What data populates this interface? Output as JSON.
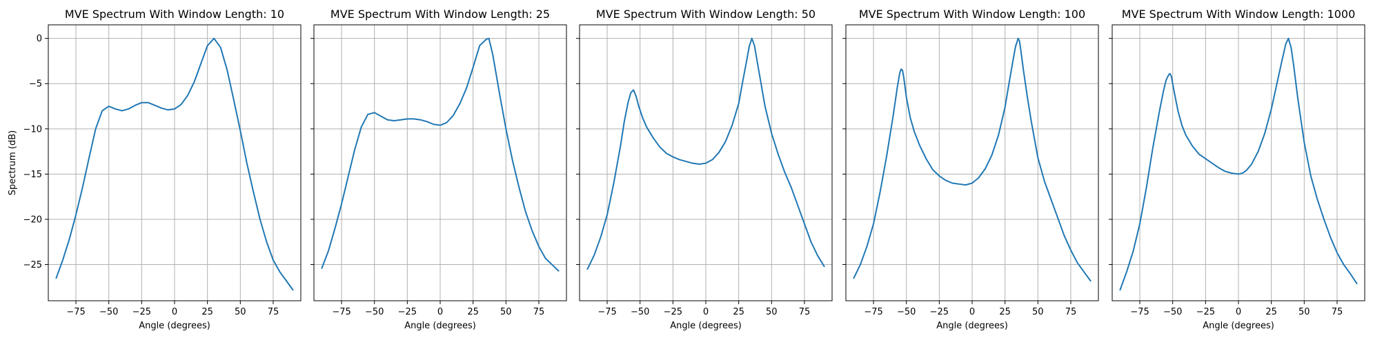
{
  "chart_data": [
    {
      "type": "line",
      "title": "MVE Spectrum With Window Length: 10",
      "xlabel": "Angle (degrees)",
      "ylabel": "Spectrum (dB)",
      "xlim": [
        -96,
        96
      ],
      "ylim": [
        -29,
        1.5
      ],
      "xticks": [
        -75,
        -50,
        -25,
        0,
        25,
        50,
        75
      ],
      "yticks": [
        0,
        -5,
        -10,
        -15,
        -20,
        -25
      ],
      "grid": true,
      "color": "#1f77b4",
      "series": [
        {
          "x": [
            -90,
            -85,
            -80,
            -75,
            -70,
            -65,
            -60,
            -55,
            -50,
            -45,
            -40,
            -35,
            -30,
            -25,
            -20,
            -15,
            -10,
            -5,
            0,
            5,
            10,
            15,
            20,
            25,
            30,
            35,
            40,
            45,
            50,
            55,
            60,
            65,
            70,
            75,
            80,
            85,
            90
          ],
          "y": [
            -26.5,
            -24.5,
            -22.2,
            -19.5,
            -16.5,
            -13.2,
            -10.0,
            -8.0,
            -7.5,
            -7.8,
            -8.0,
            -7.8,
            -7.4,
            -7.1,
            -7.1,
            -7.4,
            -7.7,
            -7.9,
            -7.8,
            -7.3,
            -6.3,
            -4.8,
            -2.8,
            -0.8,
            0.0,
            -1.0,
            -3.5,
            -6.8,
            -10.2,
            -13.8,
            -17.0,
            -20.0,
            -22.5,
            -24.5,
            -25.8,
            -26.8,
            -27.8
          ]
        }
      ]
    },
    {
      "type": "line",
      "title": "MVE Spectrum With Window Length: 25",
      "xlabel": "Angle (degrees)",
      "ylabel": "",
      "xlim": [
        -96,
        96
      ],
      "ylim": [
        -29,
        1.5
      ],
      "xticks": [
        -75,
        -50,
        -25,
        0,
        25,
        50,
        75
      ],
      "yticks": [
        0,
        -5,
        -10,
        -15,
        -20,
        -25
      ],
      "grid": true,
      "color": "#1f77b4",
      "series": [
        {
          "x": [
            -90,
            -85,
            -80,
            -75,
            -70,
            -65,
            -60,
            -55,
            -50,
            -45,
            -40,
            -35,
            -30,
            -25,
            -20,
            -15,
            -10,
            -5,
            0,
            5,
            10,
            15,
            20,
            25,
            30,
            35,
            37,
            40,
            45,
            50,
            55,
            60,
            65,
            70,
            75,
            80,
            85,
            90
          ],
          "y": [
            -25.4,
            -23.5,
            -21.0,
            -18.3,
            -15.3,
            -12.3,
            -9.8,
            -8.4,
            -8.2,
            -8.6,
            -9.0,
            -9.1,
            -9.0,
            -8.9,
            -8.9,
            -9.0,
            -9.2,
            -9.5,
            -9.6,
            -9.3,
            -8.5,
            -7.2,
            -5.5,
            -3.2,
            -0.8,
            -0.1,
            0.0,
            -1.8,
            -6.0,
            -10.0,
            -13.5,
            -16.5,
            -19.2,
            -21.3,
            -23.0,
            -24.3,
            -25.0,
            -25.7
          ]
        }
      ]
    },
    {
      "type": "line",
      "title": "MVE Spectrum With Window Length: 50",
      "xlabel": "Angle (degrees)",
      "ylabel": "",
      "xlim": [
        -96,
        96
      ],
      "ylim": [
        -29,
        1.5
      ],
      "xticks": [
        -75,
        -50,
        -25,
        0,
        25,
        50,
        75
      ],
      "yticks": [
        0,
        -5,
        -10,
        -15,
        -20,
        -25
      ],
      "grid": true,
      "color": "#1f77b4",
      "series": [
        {
          "x": [
            -90,
            -85,
            -80,
            -75,
            -70,
            -65,
            -62,
            -59,
            -57,
            -55,
            -53,
            -51,
            -48,
            -45,
            -40,
            -35,
            -30,
            -25,
            -20,
            -15,
            -10,
            -5,
            0,
            5,
            10,
            15,
            20,
            25,
            28,
            31,
            33,
            35,
            37,
            39,
            42,
            45,
            50,
            55,
            60,
            65,
            70,
            75,
            80,
            85,
            90
          ],
          "y": [
            -25.5,
            -24.0,
            -22.0,
            -19.5,
            -16.0,
            -12.0,
            -9.2,
            -7.0,
            -6.0,
            -5.7,
            -6.4,
            -7.5,
            -8.8,
            -9.8,
            -11.0,
            -12.0,
            -12.7,
            -13.1,
            -13.4,
            -13.6,
            -13.8,
            -13.9,
            -13.8,
            -13.4,
            -12.6,
            -11.4,
            -9.6,
            -7.2,
            -4.8,
            -2.5,
            -0.9,
            0.0,
            -0.8,
            -2.5,
            -5.0,
            -7.5,
            -10.5,
            -12.8,
            -14.8,
            -16.5,
            -18.5,
            -20.5,
            -22.5,
            -24.0,
            -25.2
          ]
        }
      ]
    },
    {
      "type": "line",
      "title": "MVE Spectrum With Window Length: 100",
      "xlabel": "Angle (degrees)",
      "ylabel": "",
      "xlim": [
        -96,
        96
      ],
      "ylim": [
        -29,
        1.5
      ],
      "xticks": [
        -75,
        -50,
        -25,
        0,
        25,
        50,
        75
      ],
      "yticks": [
        0,
        -5,
        -10,
        -15,
        -20,
        -25
      ],
      "grid": true,
      "color": "#1f77b4",
      "series": [
        {
          "x": [
            -90,
            -85,
            -80,
            -75,
            -70,
            -65,
            -60,
            -57,
            -55,
            -54,
            -53,
            -52,
            -50,
            -47,
            -44,
            -40,
            -35,
            -30,
            -25,
            -20,
            -15,
            -10,
            -5,
            0,
            5,
            10,
            15,
            20,
            25,
            28,
            31,
            33,
            35,
            36,
            37,
            39,
            42,
            45,
            50,
            55,
            60,
            65,
            70,
            75,
            80,
            85,
            90
          ],
          "y": [
            -26.5,
            -25.0,
            -23.0,
            -20.5,
            -17.0,
            -13.0,
            -8.5,
            -5.5,
            -3.8,
            -3.4,
            -3.5,
            -4.3,
            -6.5,
            -8.8,
            -10.3,
            -11.8,
            -13.3,
            -14.5,
            -15.2,
            -15.7,
            -16.0,
            -16.1,
            -16.2,
            -16.0,
            -15.4,
            -14.4,
            -12.9,
            -10.7,
            -7.6,
            -5.0,
            -2.5,
            -0.9,
            0.0,
            -0.3,
            -1.3,
            -3.5,
            -6.5,
            -9.2,
            -13.2,
            -15.8,
            -17.8,
            -19.8,
            -21.8,
            -23.4,
            -24.8,
            -25.8,
            -26.8
          ]
        }
      ]
    },
    {
      "type": "line",
      "title": "MVE Spectrum With Window Length: 1000",
      "xlabel": "Angle (degrees)",
      "ylabel": "",
      "xlim": [
        -96,
        96
      ],
      "ylim": [
        -29,
        1.5
      ],
      "xticks": [
        -75,
        -50,
        -25,
        0,
        25,
        50,
        75
      ],
      "yticks": [
        0,
        -5,
        -10,
        -15,
        -20,
        -25
      ],
      "grid": true,
      "color": "#1f77b4",
      "series": [
        {
          "x": [
            -90,
            -85,
            -80,
            -75,
            -70,
            -65,
            -60,
            -57,
            -55,
            -53,
            -52,
            -51,
            -49,
            -46,
            -43,
            -40,
            -35,
            -30,
            -25,
            -20,
            -15,
            -10,
            -5,
            0,
            3,
            6,
            10,
            15,
            20,
            25,
            30,
            33,
            36,
            38,
            40,
            42,
            45,
            48,
            50,
            55,
            60,
            65,
            70,
            75,
            80,
            85,
            90
          ],
          "y": [
            -27.8,
            -25.8,
            -23.5,
            -20.5,
            -16.5,
            -12.0,
            -8.0,
            -5.8,
            -4.6,
            -4.0,
            -3.9,
            -4.2,
            -5.8,
            -8.0,
            -9.6,
            -10.7,
            -11.9,
            -12.8,
            -13.3,
            -13.8,
            -14.3,
            -14.7,
            -14.9,
            -15.0,
            -14.9,
            -14.6,
            -13.9,
            -12.5,
            -10.5,
            -7.8,
            -4.5,
            -2.5,
            -0.6,
            0.0,
            -1.0,
            -3.0,
            -6.5,
            -9.5,
            -11.5,
            -15.2,
            -17.8,
            -20.0,
            -22.0,
            -23.7,
            -25.0,
            -26.0,
            -27.1
          ]
        }
      ]
    }
  ]
}
